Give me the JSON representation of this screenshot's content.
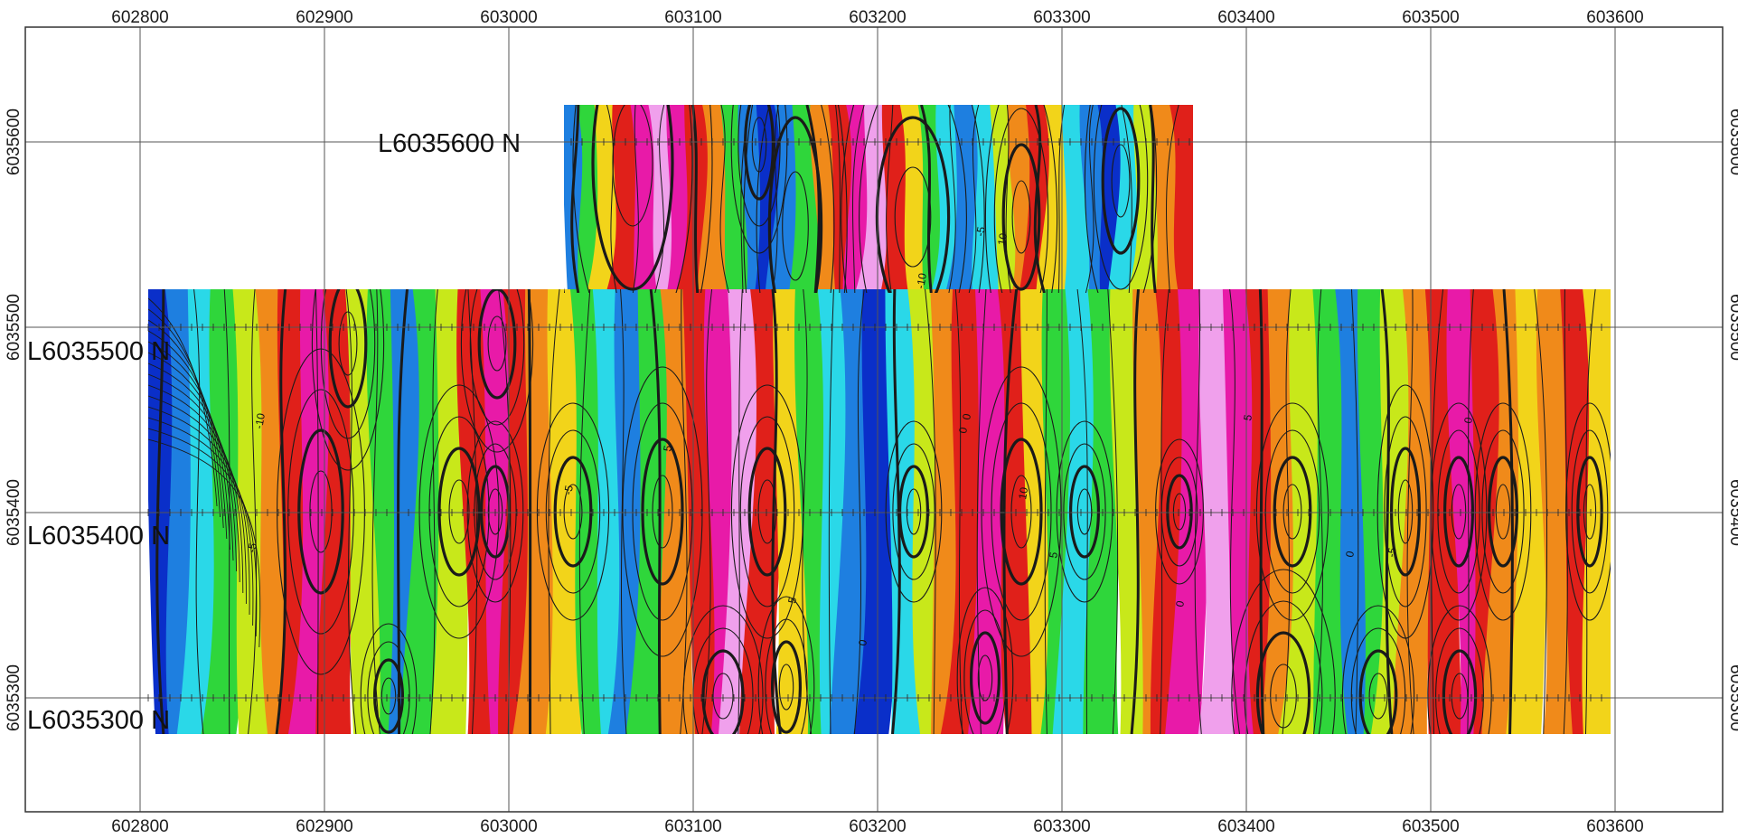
{
  "map": {
    "x_ticks": [
      "602800",
      "602900",
      "603000",
      "603100",
      "603200",
      "603300",
      "603400",
      "603500",
      "603600"
    ],
    "y_ticks": [
      "6035600",
      "6035500",
      "6035400",
      "6035300"
    ],
    "y_ticks_right": [
      "6035600",
      "6035500",
      "6035400",
      "6035300"
    ],
    "survey_lines": [
      "L6035600 N",
      "L6035500 N",
      "L6035400 N",
      "L6035300 N"
    ],
    "contour_labels": [
      "-5",
      "-10",
      "0",
      "5",
      "10",
      "0",
      "-5",
      "5",
      "0",
      "-5",
      "10",
      "0",
      "5",
      "-10",
      "0",
      "5",
      "-5",
      "0"
    ],
    "colors": {
      "grid": "#555555",
      "contour": "#1a1a1a",
      "palette": [
        "#0a2fc9",
        "#1e7fe0",
        "#2ad8e8",
        "#2fd63b",
        "#c8e81a",
        "#f2d41a",
        "#f08a1a",
        "#e0201a",
        "#e81aa8",
        "#f0a0ec"
      ]
    }
  }
}
